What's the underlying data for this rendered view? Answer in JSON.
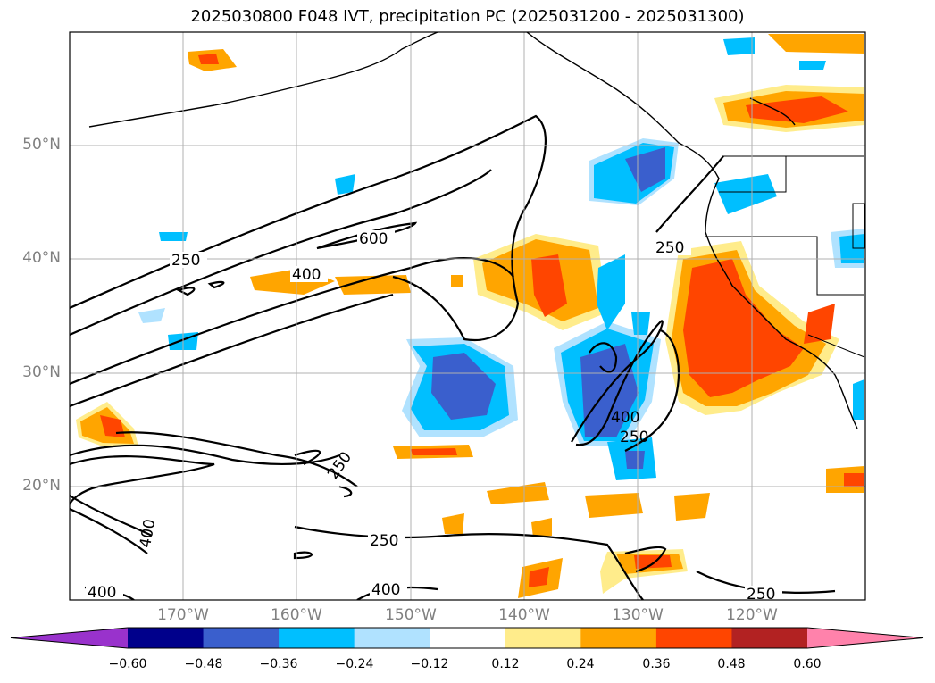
{
  "title": "2025030800 F048 IVT, precipitation PC (2025031200 - 2025031300)",
  "lat_ticks": [
    "50°N",
    "40°N",
    "30°N",
    "20°N"
  ],
  "lon_ticks": [
    "170°W",
    "160°W",
    "150°W",
    "140°W",
    "130°W",
    "120°W"
  ],
  "colorbar": {
    "tick_labels": [
      "−0.60",
      "−0.48",
      "−0.36",
      "−0.24",
      "−0.12",
      "0.12",
      "0.24",
      "0.36",
      "0.48",
      "0.60"
    ],
    "colors": [
      "#9932cc",
      "#00008b",
      "#3a5fcd",
      "#00bfff",
      "#b0e2ff",
      "#ffffff",
      "#ffec8b",
      "#ffa500",
      "#ff4500",
      "#b22222",
      "#ff82ab"
    ]
  },
  "contour_labels": [
    "250",
    "400",
    "600",
    "400",
    "250",
    "250",
    "400",
    "250",
    "400",
    "250",
    "400",
    "400",
    "250"
  ]
}
